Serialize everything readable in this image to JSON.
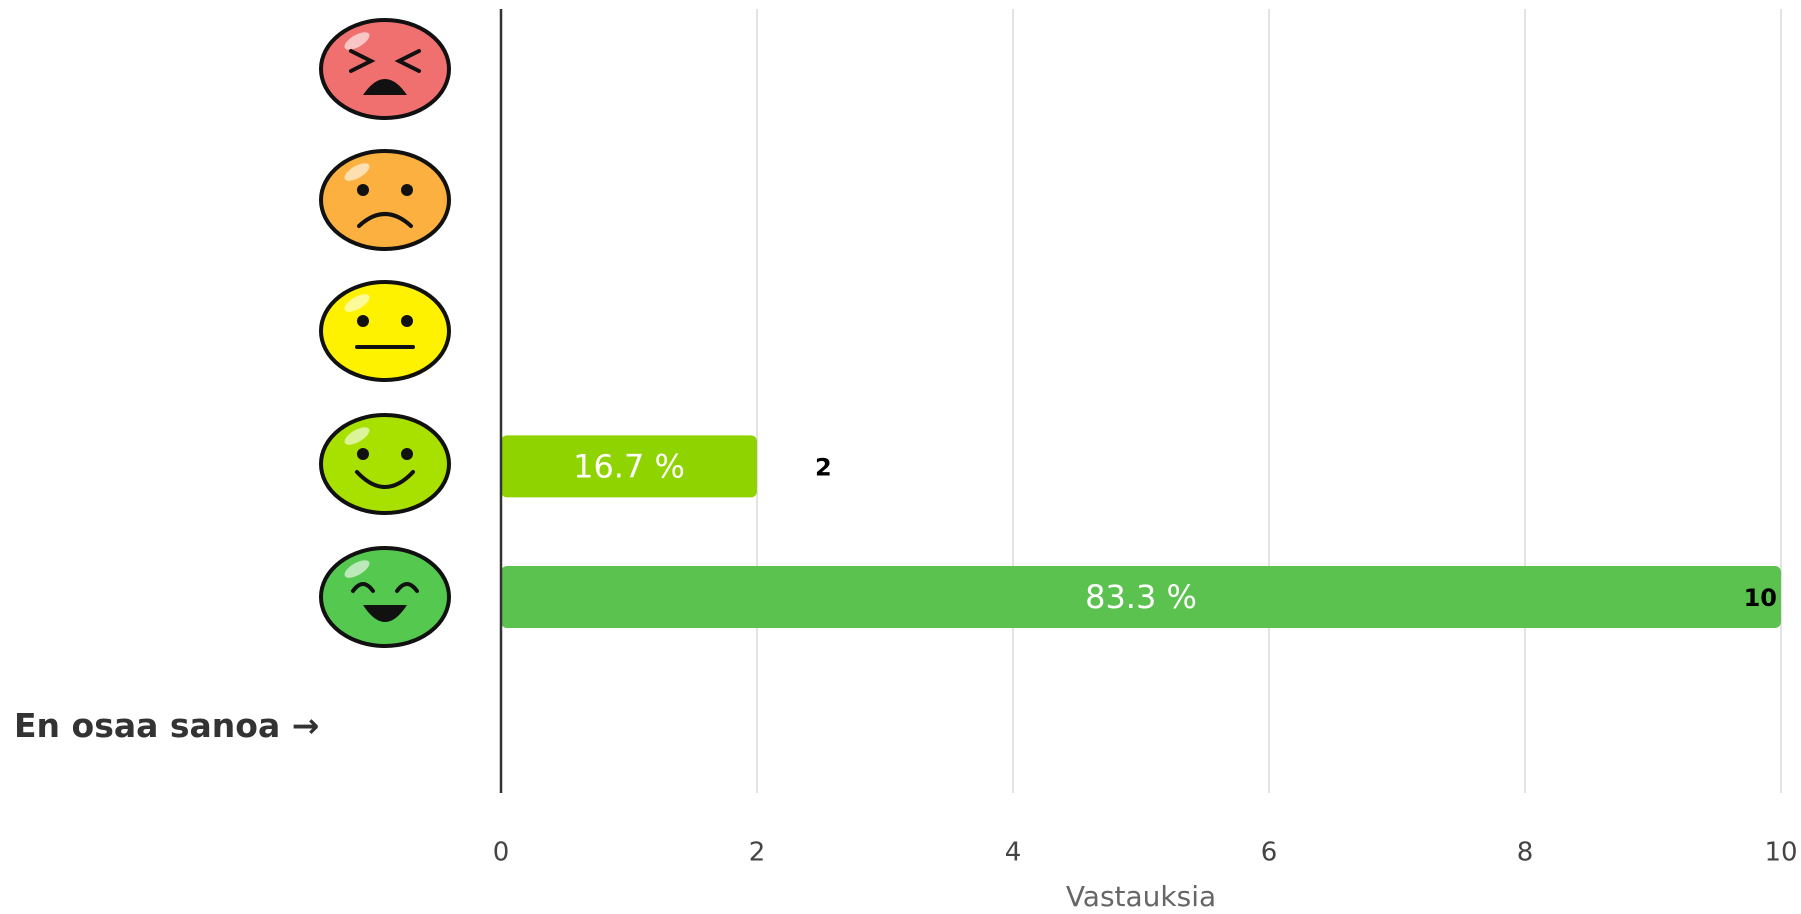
{
  "chart_data": {
    "type": "hbar",
    "categories": [
      null,
      null,
      null,
      null,
      null,
      "En osaa sanoa →"
    ],
    "values": [
      0,
      0,
      0,
      2,
      10,
      0
    ],
    "colors": [
      "#f07070",
      "#fbb040",
      "#fff200",
      "#8fd400",
      "#5cc24f",
      "#cccccc"
    ],
    "bar_labels": [
      null,
      null,
      null,
      "16.7 %",
      "83.3 %",
      null
    ],
    "xlim": [
      0,
      10
    ],
    "xticks": [
      0,
      2,
      4,
      6,
      8,
      10
    ],
    "xlabel": "Vastauksia",
    "grid": true
  }
}
